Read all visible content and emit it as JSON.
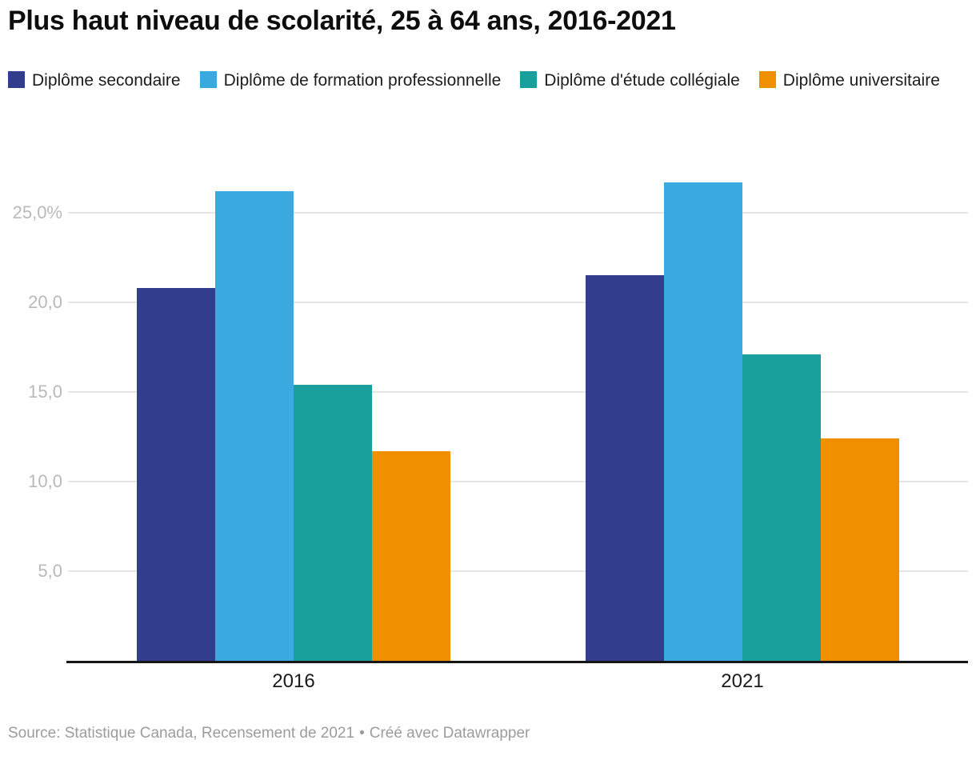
{
  "header": {
    "title": "Plus haut niveau de scolarité, 25 à 64 ans, 2016-2021"
  },
  "chart_data": {
    "type": "bar",
    "title": "Plus haut niveau de scolarité, 25 à 64 ans, 2016-2021",
    "categories": [
      "2016",
      "2021"
    ],
    "series": [
      {
        "name": "Diplôme secondaire",
        "color": "#333d8d",
        "values": [
          20.8,
          21.5
        ]
      },
      {
        "name": "Diplôme de formation professionnelle",
        "color": "#39a9e0",
        "values": [
          26.2,
          26.7
        ]
      },
      {
        "name": "Diplôme d'étude collégiale",
        "color": "#1aa09c",
        "values": [
          15.4,
          17.1
        ]
      },
      {
        "name": "Diplôme universitaire",
        "color": "#f09000",
        "values": [
          11.7,
          12.4
        ]
      }
    ],
    "xlabel": "",
    "ylabel": "",
    "unit": "%",
    "ylim": [
      0,
      27
    ],
    "grid": "on",
    "legend_position": "top",
    "yticks": [
      {
        "value": 5,
        "label": "5,0"
      },
      {
        "value": 10,
        "label": "10,0"
      },
      {
        "value": 15,
        "label": "15,0"
      },
      {
        "value": 20,
        "label": "20,0"
      },
      {
        "value": 25,
        "label": "25,0%"
      }
    ]
  },
  "footer": {
    "source": "Source: Statistique Canada, Recensement de 2021",
    "separator": "•",
    "byline": "Créé avec Datawrapper"
  }
}
